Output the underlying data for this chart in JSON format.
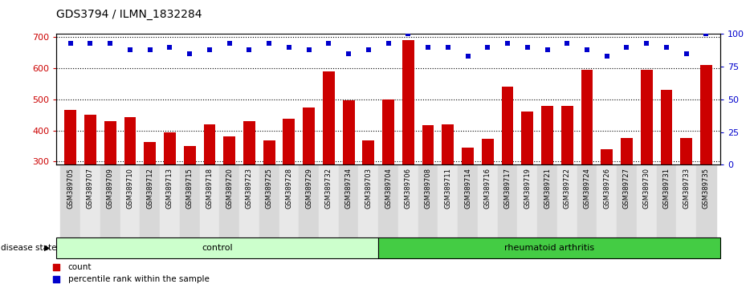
{
  "title": "GDS3794 / ILMN_1832284",
  "samples": [
    "GSM389705",
    "GSM389707",
    "GSM389709",
    "GSM389710",
    "GSM389712",
    "GSM389713",
    "GSM389715",
    "GSM389718",
    "GSM389720",
    "GSM389723",
    "GSM389725",
    "GSM389728",
    "GSM389729",
    "GSM389732",
    "GSM389734",
    "GSM389703",
    "GSM389704",
    "GSM389706",
    "GSM389708",
    "GSM389711",
    "GSM389714",
    "GSM389716",
    "GSM389717",
    "GSM389719",
    "GSM389721",
    "GSM389722",
    "GSM389724",
    "GSM389726",
    "GSM389727",
    "GSM389730",
    "GSM389731",
    "GSM389733",
    "GSM389735"
  ],
  "counts": [
    465,
    450,
    430,
    442,
    364,
    395,
    350,
    420,
    382,
    430,
    368,
    438,
    475,
    590,
    498,
    368,
    500,
    690,
    418,
    420,
    344,
    374,
    540,
    460,
    478,
    480,
    595,
    340,
    376,
    595,
    530,
    375,
    610
  ],
  "percentile_ranks": [
    93,
    93,
    93,
    88,
    88,
    90,
    85,
    88,
    93,
    88,
    93,
    90,
    88,
    93,
    85,
    88,
    93,
    100,
    90,
    90,
    83,
    90,
    93,
    90,
    88,
    93,
    88,
    83,
    90,
    93,
    90,
    85,
    100
  ],
  "group_sizes": [
    16,
    17
  ],
  "ylim_left": [
    290,
    710
  ],
  "ylim_right": [
    0,
    100
  ],
  "yticks_left": [
    300,
    400,
    500,
    600,
    700
  ],
  "yticks_right": [
    0,
    25,
    50,
    75,
    100
  ],
  "bar_color": "#cc0000",
  "dot_color": "#0000cc",
  "control_color": "#ccffcc",
  "arthritis_color": "#44cc44",
  "title_fontsize": 10
}
